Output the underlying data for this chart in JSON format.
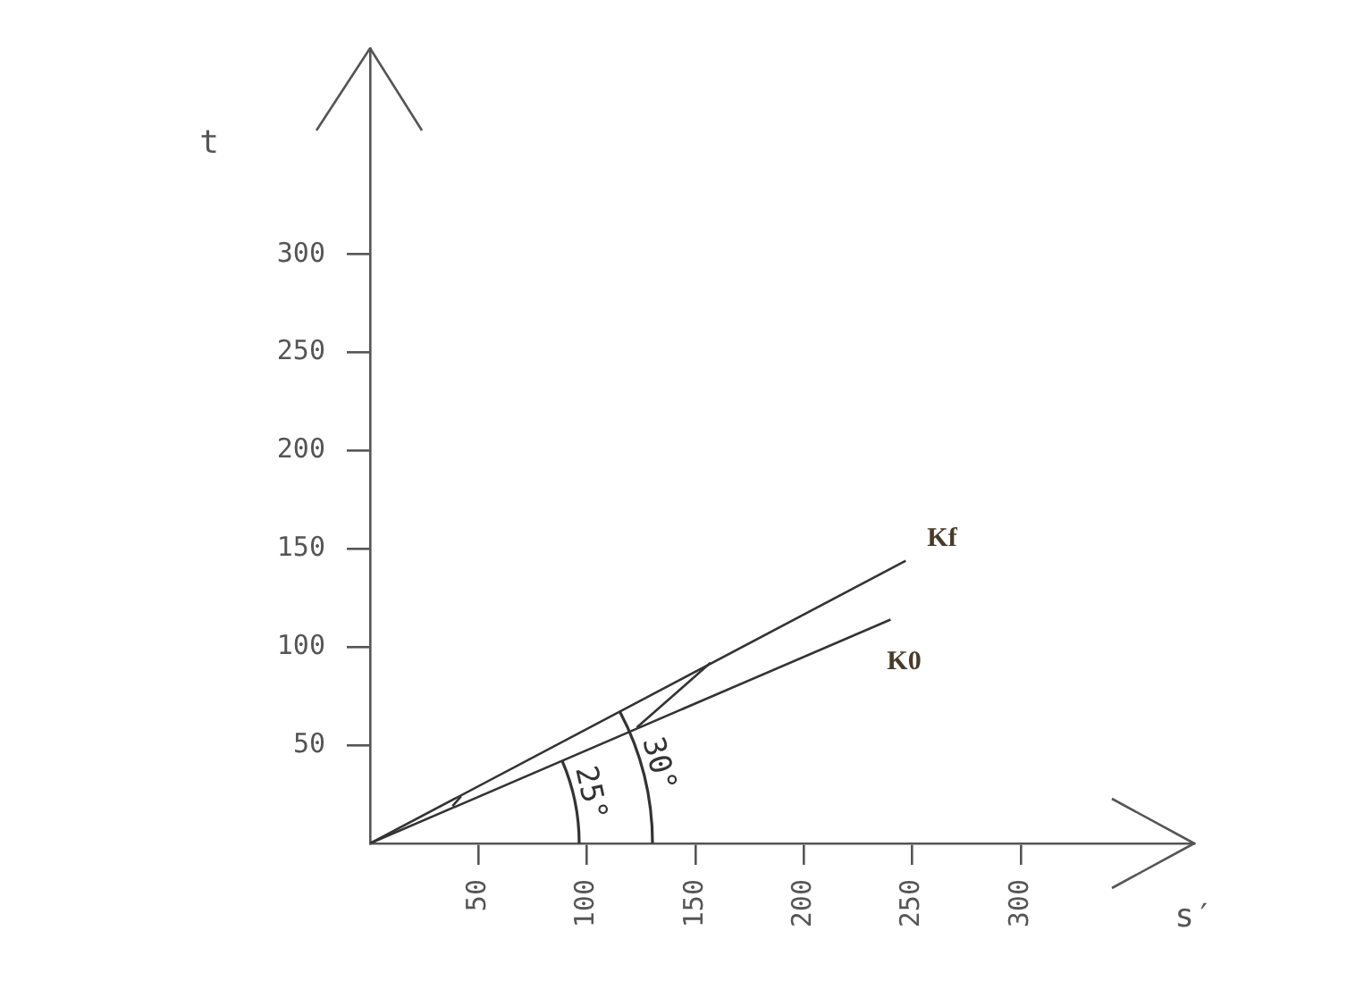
{
  "chart_data": {
    "type": "line",
    "xlabel": "s′",
    "ylabel": "t",
    "xlim": [
      0,
      380
    ],
    "ylim": [
      0,
      405
    ],
    "xticks": [
      50,
      100,
      150,
      200,
      250,
      300
    ],
    "yticks": [
      50,
      100,
      150,
      200,
      250,
      300
    ],
    "series": [
      {
        "name": "Kf",
        "color": "#333333",
        "x": [
          0,
          247
        ],
        "values": [
          0,
          144
        ]
      },
      {
        "name": "K0",
        "color": "#333333",
        "x": [
          0,
          240
        ],
        "values": [
          0,
          114
        ]
      },
      {
        "color": "#333333",
        "x": [
          123,
          157
        ],
        "values": [
          59,
          92
        ]
      },
      {
        "color": "#333333",
        "x": [
          38,
          42
        ],
        "values": [
          19,
          24
        ]
      }
    ],
    "annotations": [
      "25°",
      "30°"
    ],
    "grid": false,
    "legend": false,
    "marker": "none",
    "line_style": "solid"
  }
}
